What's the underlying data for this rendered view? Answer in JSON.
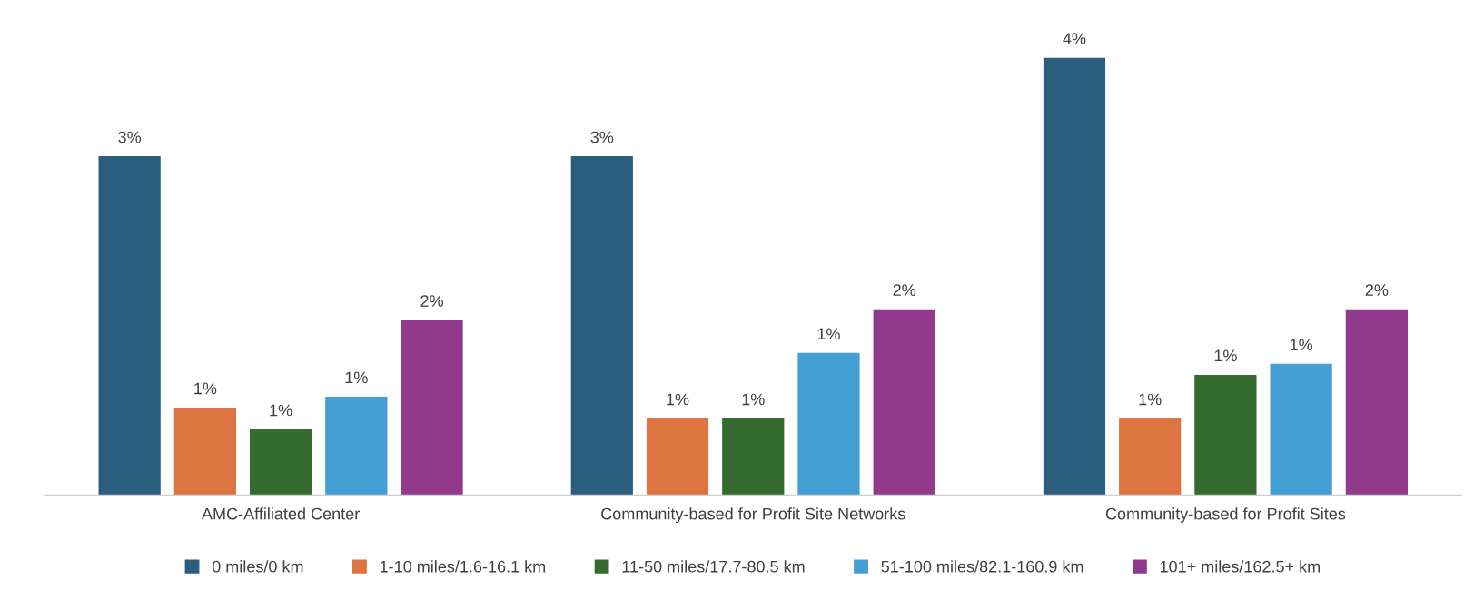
{
  "chart_data": {
    "type": "bar",
    "legend": "bottom",
    "grid": false,
    "tick_labels": "x",
    "categories": [
      "AMC-Affiliated Center",
      "Community-based for Profit Site Networks",
      "Community-based for Profit Sites"
    ],
    "series": [
      {
        "name": "0 miles/0 km",
        "color": "#2b5d7e",
        "values": [
          3.1,
          3.1,
          4.0
        ],
        "value_labels": [
          "3%",
          "3%",
          "4%"
        ]
      },
      {
        "name": "1-10 miles/1.6-16.1 km",
        "color": "#dc7541",
        "values": [
          0.8,
          0.7,
          0.7
        ],
        "value_labels": [
          "1%",
          "1%",
          "1%"
        ]
      },
      {
        "name": "11-50 miles/17.7-80.5 km",
        "color": "#356b2e",
        "values": [
          0.6,
          0.7,
          1.1
        ],
        "value_labels": [
          "1%",
          "1%",
          "1%"
        ]
      },
      {
        "name": "51-100 miles/82.1-160.9 km",
        "color": "#439fd4",
        "values": [
          0.9,
          1.3,
          1.2
        ],
        "value_labels": [
          "1%",
          "1%",
          "1%"
        ]
      },
      {
        "name": "101+ miles/162.5+ km",
        "color": "#913a8b",
        "values": [
          1.6,
          1.7,
          1.7
        ],
        "value_labels": [
          "2%",
          "2%",
          "2%"
        ]
      }
    ]
  }
}
